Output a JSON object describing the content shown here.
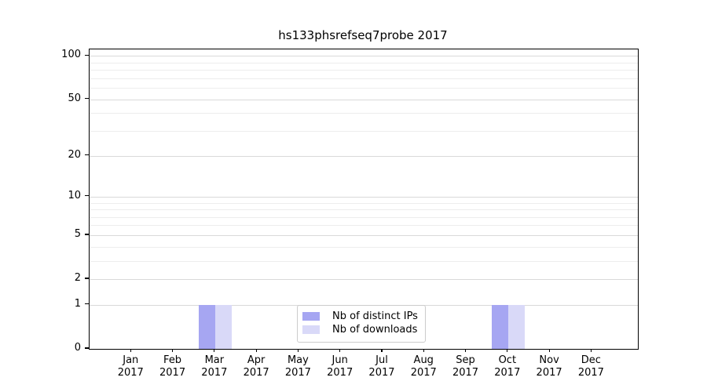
{
  "title": "hs133phsrefseq7probe 2017",
  "chart_data": {
    "type": "bar",
    "title": "hs133phsrefseq7probe 2017",
    "categories": [
      "Jan",
      "Feb",
      "Mar",
      "Apr",
      "May",
      "Jun",
      "Jul",
      "Aug",
      "Sep",
      "Oct",
      "Nov",
      "Dec"
    ],
    "year": "2017",
    "series": [
      {
        "name": "Nb of distinct IPs",
        "color": "#a6a6f2",
        "values": [
          0,
          0,
          1,
          0,
          0,
          0,
          0,
          0,
          0,
          1,
          0,
          0
        ]
      },
      {
        "name": "Nb of downloads",
        "color": "#d9d9f8",
        "values": [
          0,
          0,
          1,
          0,
          0,
          0,
          0,
          0,
          0,
          1,
          0,
          0
        ]
      }
    ],
    "xlabel": "",
    "ylabel": "",
    "y_ticks": [
      0,
      1,
      2,
      5,
      10,
      20,
      50,
      100
    ],
    "y_minor_ticks": [
      3,
      4,
      6,
      7,
      8,
      9,
      30,
      40,
      60,
      70,
      80,
      90
    ],
    "ylim": [
      0,
      111
    ],
    "y_scale": "log10(1+y)",
    "grid": "horizontal",
    "legend_position": "lower-center-inside"
  },
  "colors": {
    "axis": "#000000",
    "grid_major": "#d9d9d9",
    "grid_minor": "#ededed",
    "background": "#ffffff",
    "legend_border": "#cccccc"
  }
}
